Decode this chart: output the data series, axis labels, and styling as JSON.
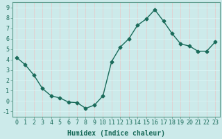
{
  "x": [
    0,
    1,
    2,
    3,
    4,
    5,
    6,
    7,
    8,
    9,
    10,
    11,
    12,
    13,
    14,
    15,
    16,
    17,
    18,
    19,
    20,
    21,
    22,
    23
  ],
  "y": [
    4.2,
    3.5,
    2.5,
    1.2,
    0.5,
    0.3,
    -0.1,
    -0.15,
    -0.7,
    -0.4,
    0.5,
    3.8,
    5.2,
    6.0,
    7.3,
    7.9,
    8.8,
    7.7,
    6.5,
    5.5,
    5.3,
    4.8,
    4.8,
    5.7
  ],
  "line_color": "#1a6b5a",
  "marker": "D",
  "marker_size": 2.5,
  "line_width": 1.0,
  "xlabel": "Humidex (Indice chaleur)",
  "xlim": [
    -0.5,
    23.5
  ],
  "ylim": [
    -1.5,
    9.5
  ],
  "yticks": [
    -1,
    0,
    1,
    2,
    3,
    4,
    5,
    6,
    7,
    8,
    9
  ],
  "xticks": [
    0,
    1,
    2,
    3,
    4,
    5,
    6,
    7,
    8,
    9,
    10,
    11,
    12,
    13,
    14,
    15,
    16,
    17,
    18,
    19,
    20,
    21,
    22,
    23
  ],
  "bg_color": "#cceaea",
  "grid_color_major": "#e8c8c8",
  "grid_color_minor": "#ddf0f0",
  "line_style": "-",
  "title_color": "#1a6b5a",
  "xlabel_fontsize": 7,
  "tick_fontsize": 6,
  "spine_color": "#5a9a8a"
}
